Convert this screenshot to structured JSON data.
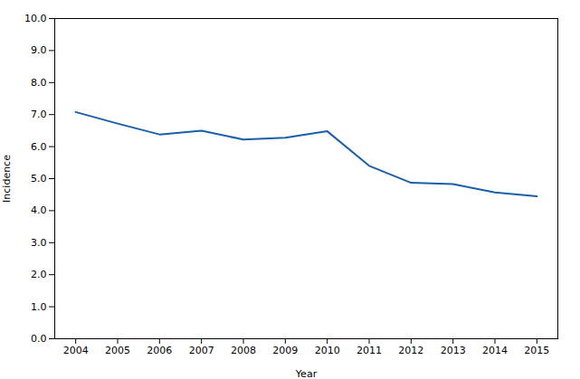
{
  "chart_data": {
    "type": "line",
    "x": [
      2004,
      2005,
      2006,
      2007,
      2008,
      2009,
      2010,
      2011,
      2012,
      2013,
      2014,
      2015
    ],
    "values": [
      7.08,
      6.72,
      6.38,
      6.5,
      6.22,
      6.28,
      6.48,
      5.4,
      4.87,
      4.83,
      4.57,
      4.45
    ],
    "color": "#1A5FA8",
    "xlabel": "Year",
    "ylabel": "Incidence",
    "xlim": [
      2003.5,
      2015.5
    ],
    "xticks": [
      2004,
      2005,
      2006,
      2007,
      2008,
      2009,
      2010,
      2011,
      2012,
      2013,
      2014,
      2015
    ],
    "ylim": [
      0.0,
      10.0
    ],
    "yticks": [
      {
        "value": 0,
        "label": "0.0"
      },
      {
        "value": 1,
        "label": "1.0"
      },
      {
        "value": 2,
        "label": "2.0"
      },
      {
        "value": 3,
        "label": "3.0"
      },
      {
        "value": 4,
        "label": "4.0"
      },
      {
        "value": 5,
        "label": "5.0"
      },
      {
        "value": 6,
        "label": "6.0"
      },
      {
        "value": 7,
        "label": "7.0"
      },
      {
        "value": 8,
        "label": "8.0"
      },
      {
        "value": 9,
        "label": "9.0"
      },
      {
        "value": 10,
        "label": "10.0"
      }
    ],
    "grid": false
  }
}
